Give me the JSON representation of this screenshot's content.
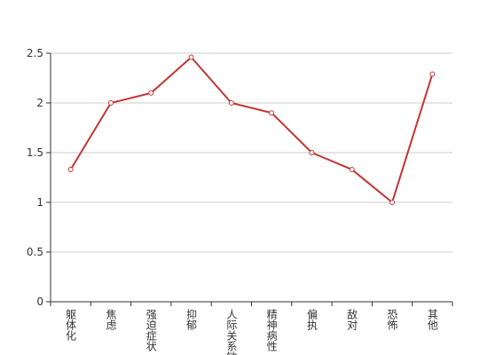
{
  "chart_data": {
    "type": "line",
    "categories": [
      "躯体化",
      "焦虑",
      "强迫症状",
      "抑郁",
      "人际关系敏感",
      "精神病性",
      "偏执",
      "敌对",
      "恐怖",
      "其他"
    ],
    "series": [
      {
        "color": "#c23531",
        "values": [
          1.33,
          2,
          2.1,
          2.46,
          2,
          1.9,
          1.5,
          1.33,
          1,
          2.29
        ]
      }
    ],
    "ylim": [
      0,
      2.5
    ],
    "yticks": [
      0,
      0.5,
      1,
      1.5,
      2,
      2.5
    ],
    "grid": true
  }
}
